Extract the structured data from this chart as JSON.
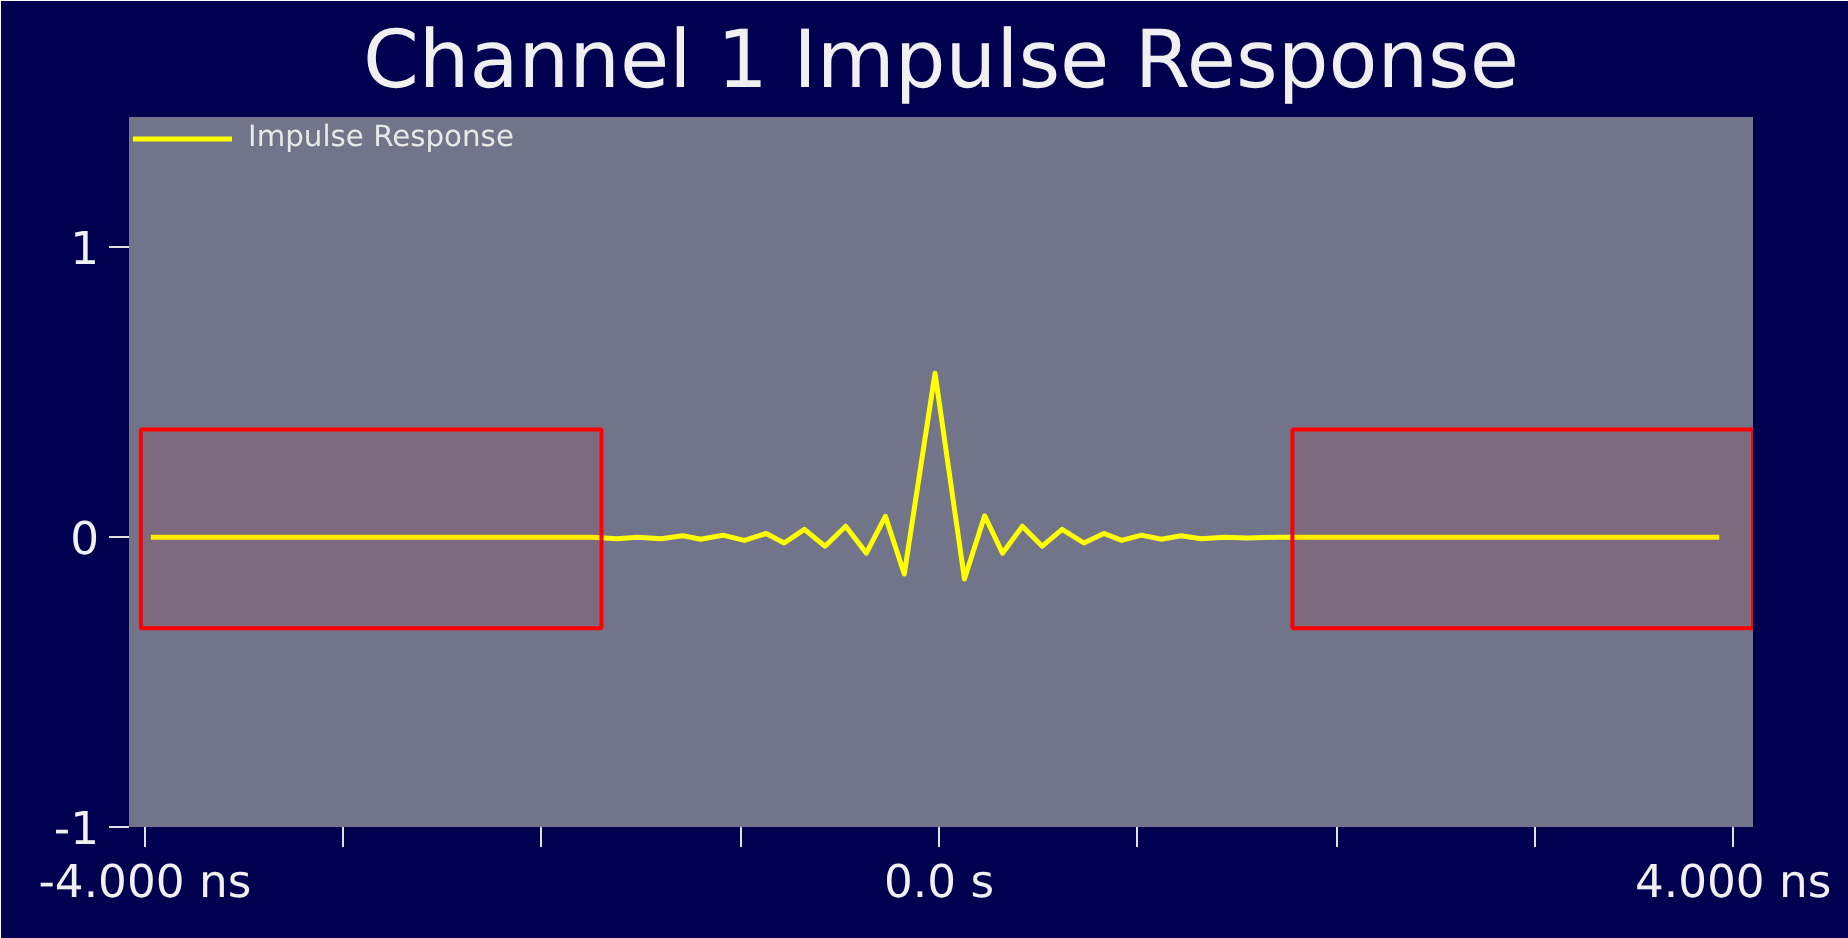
{
  "chart_data": {
    "type": "line",
    "title": "Channel 1 Impulse Response",
    "series": [
      {
        "name": "Impulse Response",
        "color": "#ffff00",
        "x": [
          -3.97,
          -1.75,
          -1.62,
          -1.52,
          -1.4,
          -1.29,
          -1.2,
          -1.09,
          -0.98,
          -0.87,
          -0.78,
          -0.678,
          -0.574,
          -0.47,
          -0.366,
          -0.27,
          -0.175,
          -0.02,
          0.128,
          0.23,
          0.32,
          0.42,
          0.52,
          0.62,
          0.73,
          0.83,
          0.92,
          1.02,
          1.12,
          1.22,
          1.32,
          1.44,
          1.55,
          1.7,
          3.93
        ],
        "values": [
          0,
          0,
          -0.005,
          0,
          -0.005,
          0.005,
          -0.007,
          0.007,
          -0.011,
          0.013,
          -0.02,
          0.027,
          -0.031,
          0.038,
          -0.055,
          0.072,
          -0.127,
          0.566,
          -0.144,
          0.074,
          -0.055,
          0.038,
          -0.031,
          0.027,
          -0.02,
          0.013,
          -0.011,
          0.007,
          -0.007,
          0.005,
          -0.005,
          0,
          -0.003,
          0,
          0
        ]
      }
    ],
    "xlim": [
      -4.08,
      4.1
    ],
    "ylim": [
      -1,
      1.45
    ],
    "xticks": [
      {
        "value": -4,
        "label": "-4.000 ns"
      },
      {
        "value": -3,
        "label": null
      },
      {
        "value": -2,
        "label": null
      },
      {
        "value": -1,
        "label": null
      },
      {
        "value": 0,
        "label": "0.0 s"
      },
      {
        "value": 1,
        "label": null
      },
      {
        "value": 2,
        "label": null
      },
      {
        "value": 3,
        "label": null
      },
      {
        "value": 4,
        "label": "4.000 ns"
      }
    ],
    "yticks": [
      -1,
      0,
      1
    ],
    "bands": [
      {
        "axis": "x",
        "from": -4.02,
        "to": -1.7,
        "color": "#ff0000"
      },
      {
        "axis": "x",
        "from": 1.78,
        "to": 4.1,
        "color": "#ff0000"
      }
    ],
    "grid": false,
    "legend": "top left",
    "marker": "none",
    "line_style": "solid"
  }
}
